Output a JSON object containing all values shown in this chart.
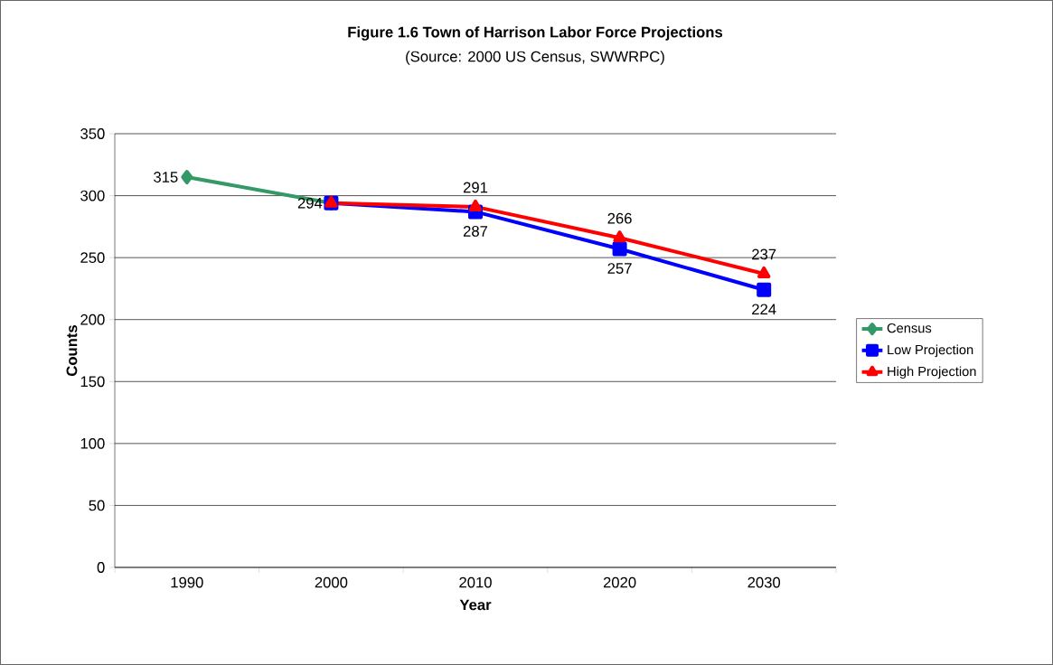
{
  "chart_data": {
    "type": "line",
    "title": "Figure 1.6 Town of Harrison Labor Force Projections",
    "subtitle": "(Source:  2000 US Census, SWWRPC)",
    "xlabel": "Year",
    "ylabel": "Counts",
    "categories": [
      "1990",
      "2000",
      "2010",
      "2020",
      "2030"
    ],
    "series": [
      {
        "name": "Census",
        "color": "#339966",
        "marker": "diamond",
        "values": [
          315,
          294,
          null,
          null,
          null
        ],
        "value_labels": [
          "315",
          "294",
          null,
          null,
          null
        ]
      },
      {
        "name": "Low Projection",
        "color": "#0000ff",
        "marker": "square",
        "values": [
          null,
          294,
          287,
          257,
          224
        ],
        "value_labels": [
          null,
          null,
          "287",
          "257",
          "224"
        ]
      },
      {
        "name": "High Projection",
        "color": "#ff0000",
        "marker": "triangle",
        "values": [
          null,
          294,
          291,
          266,
          237
        ],
        "value_labels": [
          null,
          null,
          "291",
          "266",
          "237"
        ]
      }
    ],
    "ylim": [
      0,
      350
    ],
    "yticks": [
      0,
      50,
      100,
      150,
      200,
      250,
      300,
      350
    ],
    "grid": "y",
    "legend": "right"
  }
}
